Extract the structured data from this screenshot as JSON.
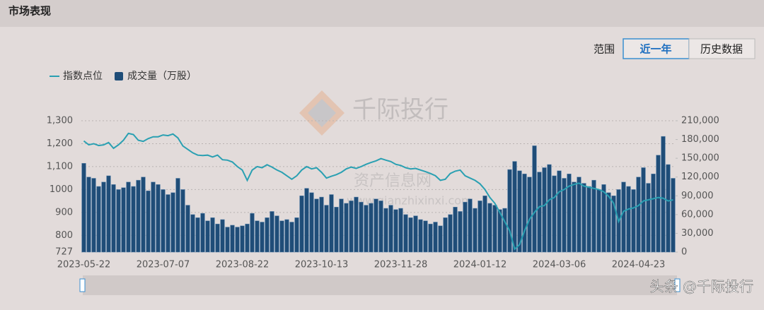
{
  "header": {
    "title": "市场表现"
  },
  "controls": {
    "label": "范围",
    "buttons": [
      "近一年",
      "历史数据"
    ]
  },
  "watermark": {
    "brand": "千际投行",
    "site": "资产信息网",
    "url": "www.qianzhixinxi.com"
  },
  "footer": "头条 @千际投行",
  "chart_data": {
    "type": "combo",
    "categories": [
      "2023-05-22",
      null,
      null,
      null,
      null,
      null,
      null,
      null,
      null,
      null,
      null,
      null,
      null,
      null,
      null,
      null,
      "2023-07-07",
      null,
      null,
      null,
      null,
      null,
      null,
      null,
      null,
      null,
      null,
      null,
      null,
      null,
      null,
      null,
      "2023-08-22",
      null,
      null,
      null,
      null,
      null,
      null,
      null,
      null,
      null,
      null,
      null,
      null,
      null,
      null,
      null,
      "2023-10-13",
      null,
      null,
      null,
      null,
      null,
      null,
      null,
      null,
      null,
      null,
      null,
      null,
      null,
      null,
      null,
      "2023-11-28",
      null,
      null,
      null,
      null,
      null,
      null,
      null,
      null,
      null,
      null,
      null,
      null,
      null,
      null,
      null,
      "2024-01-12",
      null,
      null,
      null,
      null,
      null,
      null,
      null,
      null,
      null,
      null,
      null,
      null,
      null,
      null,
      null,
      "2024-03-06",
      null,
      null,
      null,
      null,
      null,
      null,
      null,
      null,
      null,
      null,
      null,
      null,
      null,
      null,
      null,
      "2024-04-23",
      null,
      null,
      null,
      null,
      null,
      null,
      null
    ],
    "series": [
      {
        "name": "指数点位",
        "type": "line",
        "axis": "y",
        "color": "#2aa0b2",
        "values": [
          1212,
          1195,
          1200,
          1192,
          1195,
          1205,
          1180,
          1195,
          1215,
          1245,
          1240,
          1215,
          1210,
          1222,
          1230,
          1230,
          1238,
          1235,
          1242,
          1225,
          1190,
          1175,
          1160,
          1150,
          1148,
          1150,
          1142,
          1150,
          1130,
          1128,
          1120,
          1100,
          1085,
          1040,
          1085,
          1100,
          1095,
          1108,
          1098,
          1085,
          1075,
          1060,
          1045,
          1060,
          1085,
          1100,
          1090,
          1095,
          1075,
          1050,
          1058,
          1065,
          1075,
          1090,
          1098,
          1092,
          1100,
          1110,
          1118,
          1125,
          1135,
          1128,
          1122,
          1110,
          1105,
          1095,
          1090,
          1092,
          1085,
          1078,
          1070,
          1060,
          1040,
          1045,
          1070,
          1080,
          1085,
          1060,
          1050,
          1040,
          1025,
          1000,
          965,
          940,
          900,
          860,
          820,
          740,
          760,
          820,
          870,
          900,
          925,
          930,
          955,
          965,
          990,
          1000,
          1015,
          1022,
          1028,
          1015,
          1010,
          1005,
          1000,
          990,
          970,
          940,
          860,
          905,
          915,
          920,
          930,
          950,
          955,
          960,
          965,
          962,
          950,
          955
        ]
      },
      {
        "name": "成交量（万股）",
        "type": "bar",
        "axis": "y2",
        "color": "#1f4d78",
        "values": [
          142000,
          120000,
          118000,
          105000,
          112000,
          122000,
          108000,
          100000,
          103000,
          112000,
          105000,
          115000,
          120000,
          98000,
          112000,
          108000,
          100000,
          92000,
          95000,
          118000,
          100000,
          75000,
          60000,
          55000,
          62000,
          50000,
          55000,
          45000,
          52000,
          40000,
          43000,
          40000,
          42000,
          45000,
          62000,
          50000,
          48000,
          55000,
          65000,
          58000,
          50000,
          52000,
          48000,
          55000,
          90000,
          102000,
          95000,
          85000,
          88000,
          75000,
          92000,
          72000,
          85000,
          78000,
          82000,
          88000,
          80000,
          75000,
          78000,
          85000,
          82000,
          70000,
          75000,
          68000,
          70000,
          60000,
          55000,
          58000,
          52000,
          50000,
          45000,
          48000,
          42000,
          55000,
          60000,
          72000,
          65000,
          80000,
          85000,
          70000,
          82000,
          90000,
          78000,
          75000,
          68000,
          70000,
          132000,
          145000,
          130000,
          125000,
          120000,
          170000,
          128000,
          135000,
          140000,
          122000,
          130000,
          118000,
          125000,
          112000,
          120000,
          110000,
          105000,
          115000,
          100000,
          108000,
          95000,
          90000,
          100000,
          112000,
          105000,
          100000,
          120000,
          135000,
          110000,
          125000,
          155000,
          185000,
          140000,
          118000
        ]
      }
    ],
    "ylim": [
      727,
      1300
    ],
    "yticks": [
      727,
      800,
      900,
      1000,
      {
        "value": 1100,
        "label": "1,100"
      },
      {
        "value": 1200,
        "label": "1,200"
      },
      {
        "value": 1300,
        "label": "1,300"
      }
    ],
    "y2lim": [
      0,
      210000
    ],
    "y2ticks": [
      0,
      {
        "value": 30000,
        "label": "30,000"
      },
      {
        "value": 60000,
        "label": "60,000"
      },
      {
        "value": 90000,
        "label": "90,000"
      },
      {
        "value": 120000,
        "label": "120,000"
      },
      {
        "value": 150000,
        "label": "150,000"
      },
      {
        "value": 180000,
        "label": "180,000"
      },
      {
        "value": 210000,
        "label": "210,000"
      }
    ],
    "grid": true
  }
}
